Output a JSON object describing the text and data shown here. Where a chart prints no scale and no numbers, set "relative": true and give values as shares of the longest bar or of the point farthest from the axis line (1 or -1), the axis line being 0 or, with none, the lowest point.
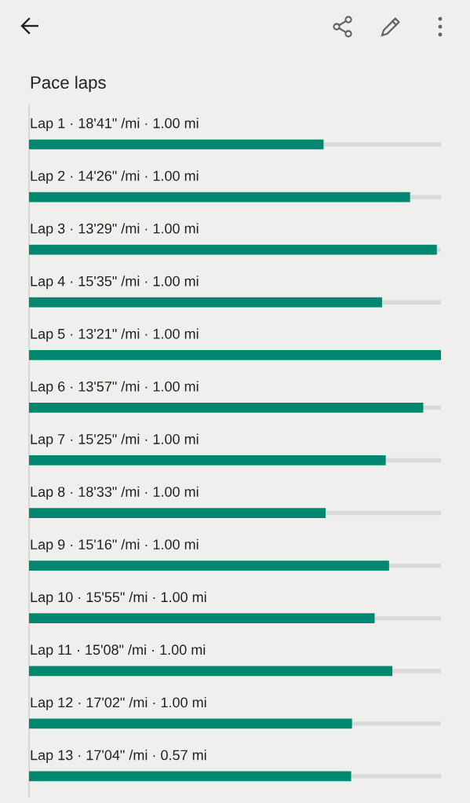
{
  "chart_data": {
    "type": "bar",
    "orientation": "horizontal",
    "relative": true,
    "title": "Pace laps",
    "categories": [
      "Lap 1 · 18'41\" /mi · 1.00 mi",
      "Lap 2 · 14'26\" /mi · 1.00 mi",
      "Lap 3 · 13'29\" /mi · 1.00 mi",
      "Lap 4 · 15'35\" /mi · 1.00 mi",
      "Lap 5 · 13'21\" /mi · 1.00 mi",
      "Lap 6 · 13'57\" /mi · 1.00 mi",
      "Lap 7 · 15'25\" /mi · 1.00 mi",
      "Lap 8 · 18'33\" /mi · 1.00 mi",
      "Lap 9 · 15'16\" /mi · 1.00 mi",
      "Lap 10 · 15'55\" /mi · 1.00 mi",
      "Lap 11 · 15'08\" /mi · 1.00 mi",
      "Lap 12 · 17'02\" /mi · 1.00 mi",
      "Lap 13 · 17'04\" /mi · 0.57 mi"
    ],
    "values": [
      0.715,
      0.925,
      0.99,
      0.857,
      1,
      0.957,
      0.866,
      0.72,
      0.874,
      0.839,
      0.882,
      0.784,
      0.782
    ],
    "color": "#00876f",
    "grid": "y"
  }
}
